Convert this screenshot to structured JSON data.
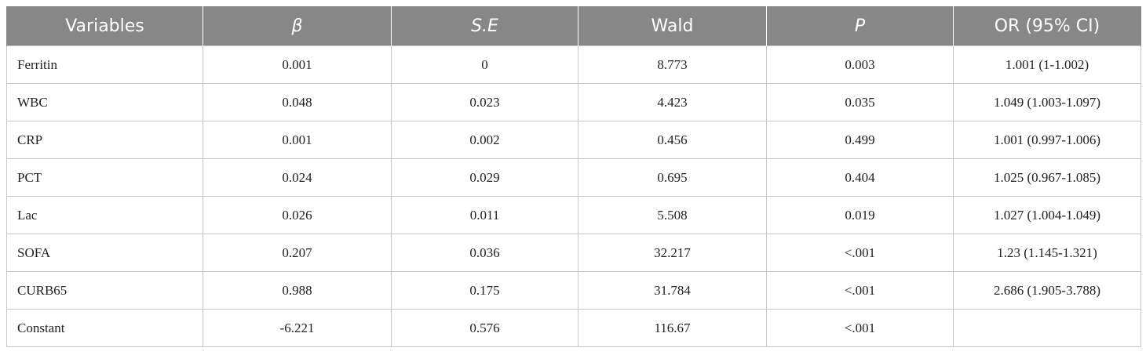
{
  "table": {
    "headers": [
      "Variables",
      "β",
      "S.E",
      "Wald",
      "P",
      "OR (95% CI)"
    ],
    "rows": [
      [
        "Ferritin",
        "0.001",
        "0",
        "8.773",
        "0.003",
        "1.001 (1-1.002)"
      ],
      [
        "WBC",
        "0.048",
        "0.023",
        "4.423",
        "0.035",
        "1.049 (1.003-1.097)"
      ],
      [
        "CRP",
        "0.001",
        "0.002",
        "0.456",
        "0.499",
        "1.001 (0.997-1.006)"
      ],
      [
        "PCT",
        "0.024",
        "0.029",
        "0.695",
        "0.404",
        "1.025 (0.967-1.085)"
      ],
      [
        "Lac",
        "0.026",
        "0.011",
        "5.508",
        "0.019",
        "1.027 (1.004-1.049)"
      ],
      [
        "SOFA",
        "0.207",
        "0.036",
        "32.217",
        "<.001",
        "1.23 (1.145-1.321)"
      ],
      [
        "CURB65",
        "0.988",
        "0.175",
        "31.784",
        "<.001",
        "2.686 (1.905-3.788)"
      ],
      [
        "Constant",
        "-6.221",
        "0.576",
        "116.67",
        "<.001",
        ""
      ]
    ]
  },
  "colors": {
    "header_bg": "#878787",
    "header_text": "#ffffff",
    "grid": "#c8c8c8"
  }
}
